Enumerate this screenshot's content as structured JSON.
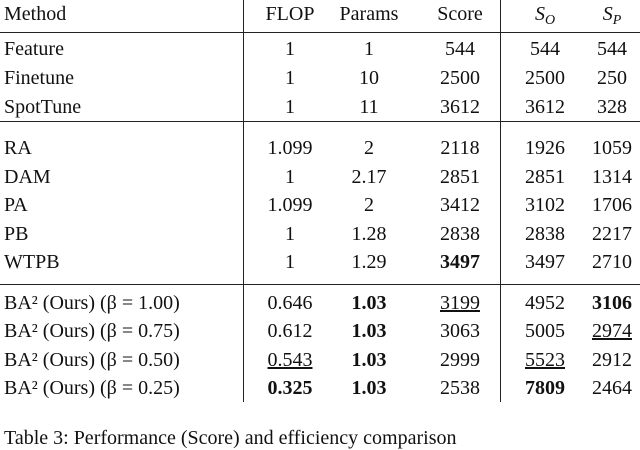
{
  "table": {
    "header": [
      "Method",
      "FLOP",
      "Params",
      "Score",
      {
        "text": "S",
        "sub": "O"
      },
      {
        "text": "S",
        "sub": "P"
      }
    ],
    "groups": [
      {
        "rows": [
          [
            "Feature",
            "1",
            "1",
            "544",
            "544",
            "544"
          ],
          [
            "Finetune",
            "1",
            "10",
            "2500",
            "2500",
            "250"
          ],
          [
            "SpotTune",
            "1",
            "11",
            "3612",
            "3612",
            "328"
          ]
        ]
      },
      {
        "rows": [
          [
            "RA",
            "1.099",
            "2",
            "2118",
            "1926",
            "1059"
          ],
          [
            "DAM",
            "1",
            "2.17",
            "2851",
            "2851",
            "1314"
          ],
          [
            "PA",
            "1.099",
            "2",
            "3412",
            "3102",
            "1706"
          ],
          [
            "PB",
            "1",
            "1.28",
            "2838",
            "2838",
            "2217"
          ],
          [
            "WTPB",
            "1",
            "1.29",
            {
              "text": "3497",
              "bold": true
            },
            "3497",
            "2710"
          ]
        ]
      },
      {
        "rows": [
          [
            "BA² (Ours) (β = 1.00)",
            "0.646",
            {
              "text": "1.03",
              "bold": true
            },
            {
              "text": "3199",
              "underline": true
            },
            "4952",
            {
              "text": "3106",
              "bold": true
            }
          ],
          [
            "BA² (Ours) (β = 0.75)",
            "0.612",
            {
              "text": "1.03",
              "bold": true
            },
            "3063",
            "5005",
            {
              "text": "2974",
              "underline": true
            }
          ],
          [
            "BA² (Ours) (β = 0.50)",
            {
              "text": "0.543",
              "underline": true
            },
            {
              "text": "1.03",
              "bold": true
            },
            "2999",
            {
              "text": "5523",
              "underline": true
            },
            "2912"
          ],
          [
            "BA² (Ours) (β = 0.25)",
            {
              "text": "0.325",
              "bold": true
            },
            {
              "text": "1.03",
              "bold": true
            },
            "2538",
            {
              "text": "7809",
              "bold": true
            },
            "2464"
          ]
        ]
      }
    ],
    "caption": "Table 3: Performance (Score) and efficiency comparison"
  }
}
